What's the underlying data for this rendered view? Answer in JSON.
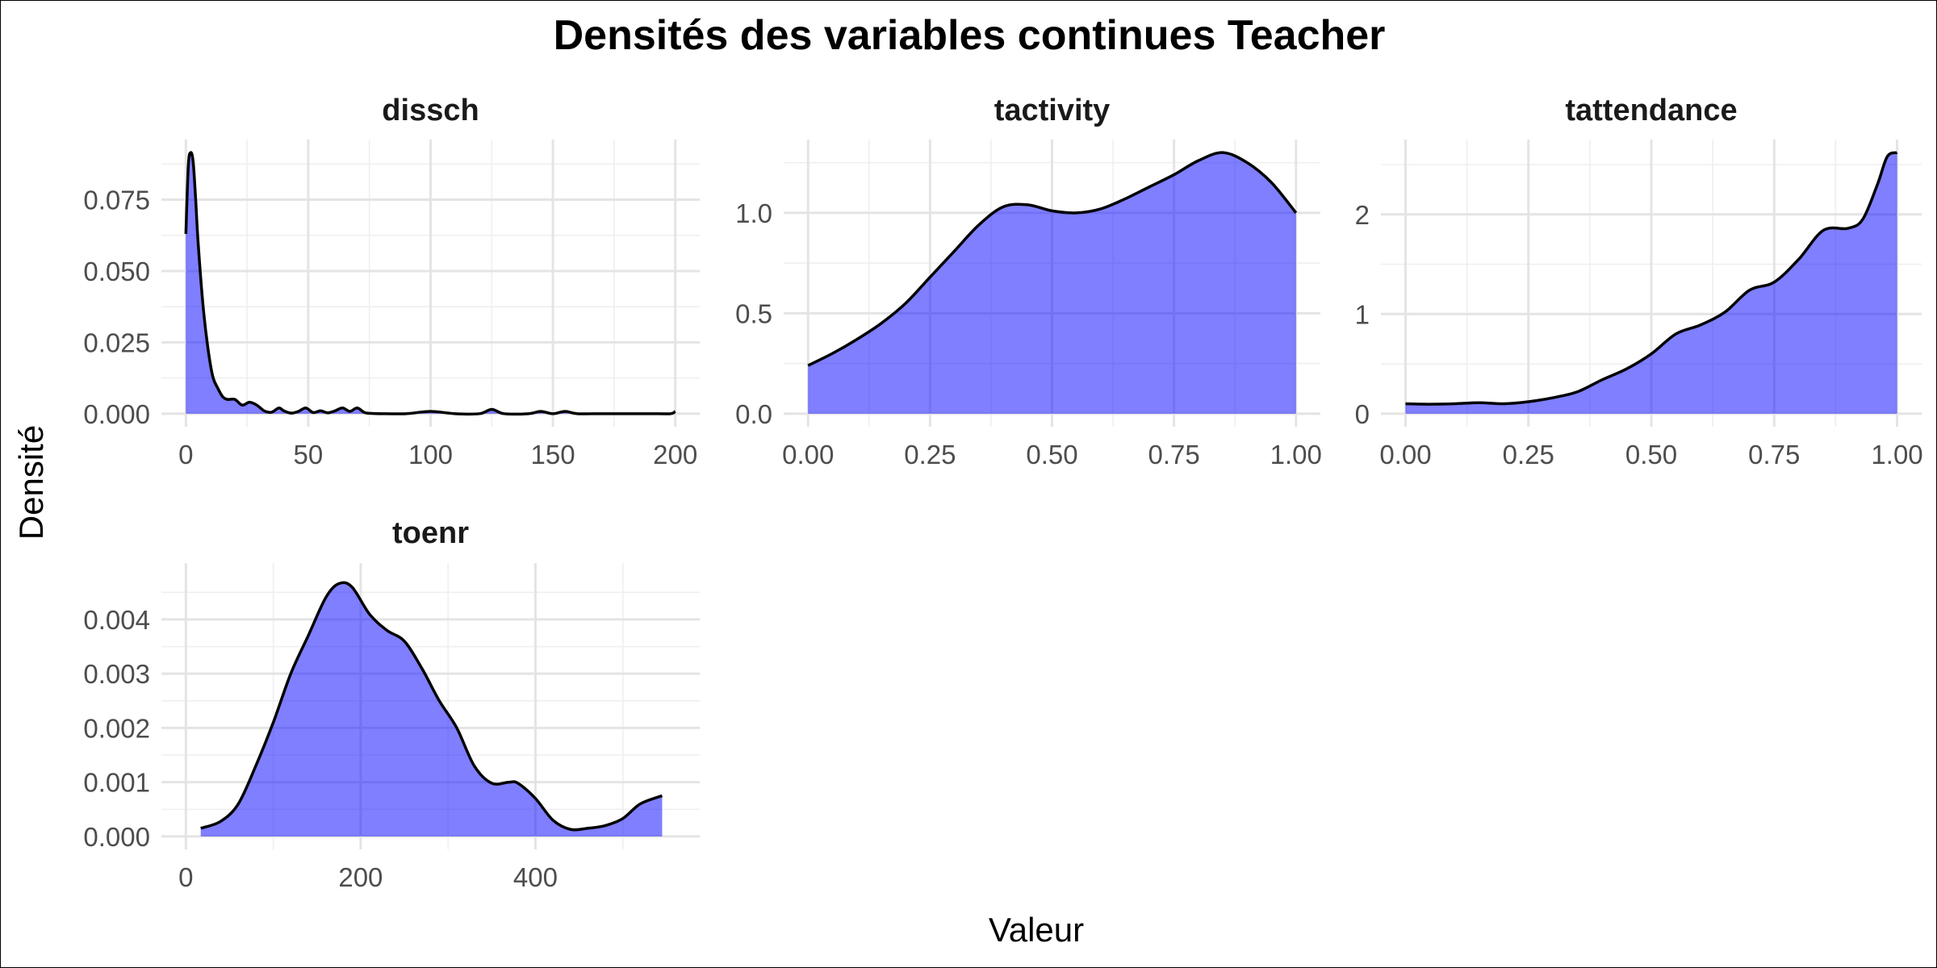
{
  "chart_data": {
    "type": "area",
    "title": "Densités des variables continues Teacher",
    "xlabel": "Valeur",
    "ylabel": "Densité",
    "grid": true,
    "fill_color": "#0000FF",
    "line_color": "#000000",
    "panels": [
      {
        "name": "dissch",
        "xlim": [
          0,
          200
        ],
        "ylim": [
          0,
          0.0915
        ],
        "xticks": [
          0,
          50,
          100,
          150,
          200
        ],
        "xtick_labels": [
          "0",
          "50",
          "100",
          "150",
          "200"
        ],
        "yticks": [
          0,
          0.025,
          0.05,
          0.075
        ],
        "ytick_labels": [
          "0.000",
          "0.025",
          "0.050",
          "0.075"
        ],
        "x": [
          0,
          1,
          2,
          3,
          4,
          5,
          7,
          9,
          11,
          13,
          15,
          17,
          20,
          23,
          26,
          29,
          32,
          35,
          38,
          40,
          43,
          46,
          49,
          52,
          55,
          58,
          61,
          64,
          67,
          70,
          73,
          76,
          80,
          90,
          100,
          110,
          120,
          125,
          130,
          140,
          145,
          150,
          155,
          160,
          170,
          180,
          190,
          198,
          200
        ],
        "y": [
          0.063,
          0.087,
          0.0915,
          0.088,
          0.075,
          0.06,
          0.038,
          0.023,
          0.013,
          0.009,
          0.006,
          0.005,
          0.005,
          0.003,
          0.004,
          0.003,
          0.001,
          0.0005,
          0.002,
          0.001,
          0.0002,
          0.0008,
          0.002,
          0.0004,
          0.001,
          0.0003,
          0.001,
          0.002,
          0.0008,
          0.002,
          0.0004,
          0.0001,
          0.0,
          0.0,
          0.0008,
          0.0,
          0.0,
          0.0015,
          0.0,
          0.0,
          0.0008,
          0.0,
          0.0008,
          0.0,
          0.0,
          0.0,
          0.0,
          0.0,
          0.0008
        ]
      },
      {
        "name": "tactivity",
        "xlim": [
          0,
          1
        ],
        "ylim": [
          0,
          1.3
        ],
        "xticks": [
          0,
          0.25,
          0.5,
          0.75,
          1
        ],
        "xtick_labels": [
          "0.00",
          "0.25",
          "0.50",
          "0.75",
          "1.00"
        ],
        "yticks": [
          0,
          0.5,
          1
        ],
        "ytick_labels": [
          "0.0",
          "0.5",
          "1.0"
        ],
        "x": [
          0,
          0.05,
          0.1,
          0.15,
          0.2,
          0.25,
          0.3,
          0.35,
          0.4,
          0.45,
          0.5,
          0.55,
          0.6,
          0.65,
          0.7,
          0.75,
          0.8,
          0.85,
          0.9,
          0.95,
          1.0
        ],
        "y": [
          0.24,
          0.3,
          0.37,
          0.45,
          0.55,
          0.68,
          0.81,
          0.94,
          1.03,
          1.04,
          1.01,
          1.0,
          1.02,
          1.07,
          1.13,
          1.19,
          1.26,
          1.3,
          1.25,
          1.15,
          1.0
        ]
      },
      {
        "name": "tattendance",
        "xlim": [
          0,
          1
        ],
        "ylim": [
          0,
          2.62
        ],
        "xticks": [
          0,
          0.25,
          0.5,
          0.75,
          1
        ],
        "xtick_labels": [
          "0.00",
          "0.25",
          "0.50",
          "0.75",
          "1.00"
        ],
        "yticks": [
          0,
          1,
          2
        ],
        "ytick_labels": [
          "0",
          "1",
          "2"
        ],
        "x": [
          0,
          0.05,
          0.1,
          0.15,
          0.2,
          0.25,
          0.3,
          0.35,
          0.4,
          0.45,
          0.5,
          0.55,
          0.6,
          0.65,
          0.7,
          0.75,
          0.8,
          0.85,
          0.9,
          0.93,
          0.96,
          0.98,
          1.0
        ],
        "y": [
          0.1,
          0.095,
          0.1,
          0.11,
          0.1,
          0.12,
          0.16,
          0.22,
          0.34,
          0.45,
          0.6,
          0.8,
          0.89,
          1.02,
          1.24,
          1.32,
          1.55,
          1.84,
          1.86,
          1.95,
          2.3,
          2.58,
          2.62
        ]
      },
      {
        "name": "toenr",
        "xlim": [
          0,
          560
        ],
        "ylim": [
          0,
          0.0048
        ],
        "xticks": [
          0,
          200,
          400
        ],
        "xtick_labels": [
          "0",
          "200",
          "400"
        ],
        "yticks": [
          0,
          0.001,
          0.002,
          0.003,
          0.004
        ],
        "ytick_labels": [
          "0.000",
          "0.001",
          "0.002",
          "0.003",
          "0.004"
        ],
        "x": [
          17,
          40,
          60,
          80,
          100,
          120,
          140,
          160,
          175,
          190,
          210,
          230,
          250,
          270,
          290,
          310,
          330,
          350,
          370,
          380,
          400,
          420,
          440,
          460,
          480,
          500,
          520,
          545
        ],
        "y": [
          0.00015,
          0.00028,
          0.0006,
          0.0013,
          0.0021,
          0.003,
          0.0037,
          0.0044,
          0.00466,
          0.0046,
          0.0041,
          0.0038,
          0.0036,
          0.0031,
          0.0025,
          0.002,
          0.0013,
          0.00098,
          0.001,
          0.00098,
          0.0007,
          0.0003,
          0.00013,
          0.00015,
          0.0002,
          0.00033,
          0.0006,
          0.00075
        ]
      }
    ]
  }
}
